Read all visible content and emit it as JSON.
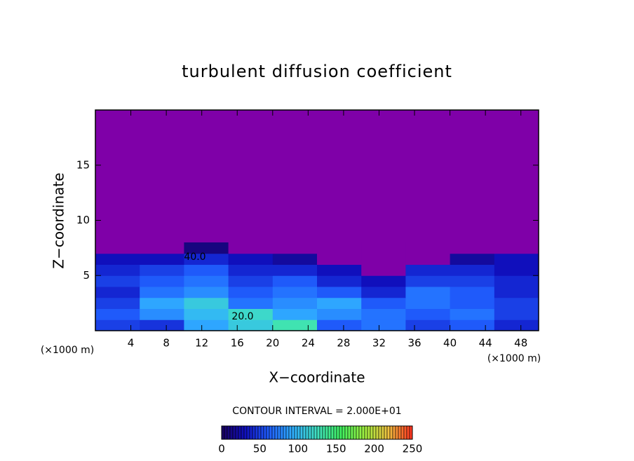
{
  "chart_data": {
    "type": "heatmap",
    "title": "turbulent diffusion coefficient",
    "xlabel": "X−coordinate",
    "ylabel": "Z−coordinate",
    "xunit": "(×1000 m)",
    "xlim": [
      0,
      50
    ],
    "ylim": [
      0,
      20
    ],
    "xticks": [
      4,
      8,
      12,
      16,
      20,
      24,
      28,
      32,
      36,
      40,
      44,
      48
    ],
    "yticks": [
      5,
      10,
      15
    ],
    "x_edges": [
      0,
      5,
      10,
      15,
      20,
      25,
      30,
      35,
      40,
      45,
      50
    ],
    "z_edges": [
      0,
      1,
      2,
      3,
      4,
      5,
      6,
      7,
      8
    ],
    "z": [
      [
        50,
        45,
        90,
        110,
        130,
        60,
        70,
        50,
        60,
        40
      ],
      [
        60,
        80,
        100,
        120,
        90,
        80,
        70,
        60,
        70,
        50
      ],
      [
        50,
        90,
        110,
        70,
        80,
        90,
        60,
        70,
        60,
        50
      ],
      [
        40,
        70,
        80,
        60,
        70,
        60,
        40,
        70,
        60,
        40
      ],
      [
        50,
        60,
        70,
        50,
        60,
        40,
        30,
        50,
        50,
        40
      ],
      [
        40,
        50,
        60,
        40,
        40,
        30,
        0,
        40,
        40,
        30
      ],
      [
        30,
        30,
        40,
        30,
        20,
        0,
        0,
        0,
        20,
        30
      ],
      [
        0,
        0,
        10,
        0,
        0,
        0,
        0,
        0,
        0,
        0
      ]
    ],
    "background_color": "#7f00a8",
    "colormap": [
      "#1a0060",
      "#1010c0",
      "#2060ff",
      "#30b0ff",
      "#40e0c0",
      "#40f060",
      "#a0f040",
      "#f0c040",
      "#ff3020"
    ],
    "annotations": [
      "40.0",
      "20.0"
    ],
    "contour_interval": "CONTOUR INTERVAL = 2.000E+01",
    "clim": [
      0,
      250
    ],
    "cticks": [
      0,
      50,
      100,
      150,
      200,
      250
    ]
  }
}
